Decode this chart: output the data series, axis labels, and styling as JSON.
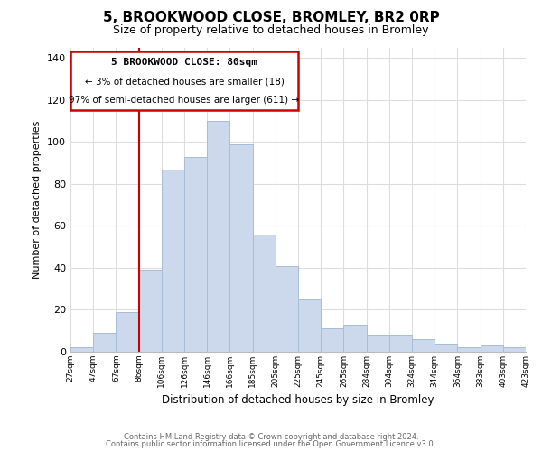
{
  "title": "5, BROOKWOOD CLOSE, BROMLEY, BR2 0RP",
  "subtitle": "Size of property relative to detached houses in Bromley",
  "xlabel": "Distribution of detached houses by size in Bromley",
  "ylabel": "Number of detached properties",
  "bar_color": "#ccd9ed",
  "bar_edge_color": "#a8bdd6",
  "categories": [
    "27sqm",
    "47sqm",
    "67sqm",
    "86sqm",
    "106sqm",
    "126sqm",
    "146sqm",
    "166sqm",
    "185sqm",
    "205sqm",
    "225sqm",
    "245sqm",
    "265sqm",
    "284sqm",
    "304sqm",
    "324sqm",
    "344sqm",
    "364sqm",
    "383sqm",
    "403sqm",
    "423sqm"
  ],
  "values": [
    2,
    9,
    19,
    39,
    87,
    93,
    110,
    99,
    56,
    41,
    25,
    11,
    13,
    8,
    8,
    6,
    4,
    2,
    3,
    2
  ],
  "ylim": [
    0,
    145
  ],
  "yticks": [
    0,
    20,
    40,
    60,
    80,
    100,
    120,
    140
  ],
  "vline_color": "#cc0000",
  "annotation_title": "5 BROOKWOOD CLOSE: 80sqm",
  "annotation_line1": "← 3% of detached houses are smaller (18)",
  "annotation_line2": "97% of semi-detached houses are larger (611) →",
  "annotation_box_color": "#ffffff",
  "annotation_box_edge": "#cc0000",
  "footer1": "Contains HM Land Registry data © Crown copyright and database right 2024.",
  "footer2": "Contains public sector information licensed under the Open Government Licence v3.0.",
  "background_color": "#ffffff",
  "grid_color": "#dddddd"
}
